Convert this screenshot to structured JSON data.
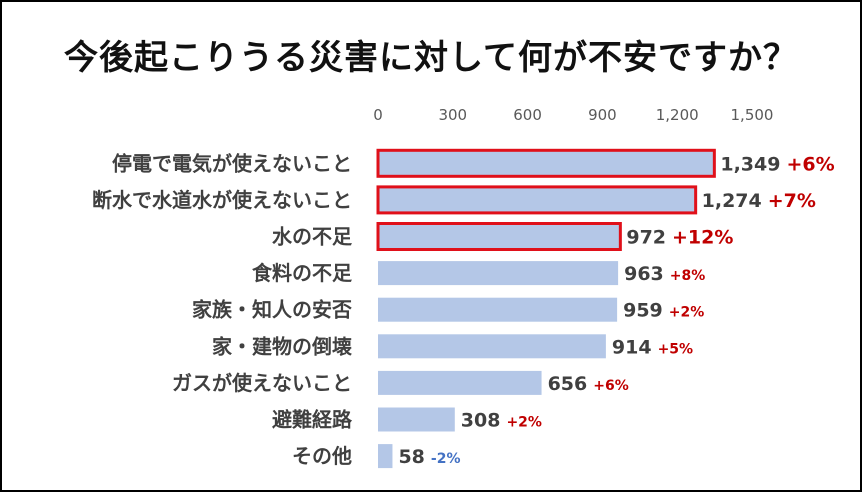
{
  "chart_data": {
    "type": "bar",
    "orientation": "horizontal",
    "title": "今後起こりうる災害に対して何が不安ですか？",
    "categories": [
      "停電で電気が使えないこと",
      "断水で水道水が使えないこと",
      "水の不足",
      "食料の不足",
      "家族・知人の安否",
      "家・建物の倒壊",
      "ガスが使えないこと",
      "避難経路",
      "その他"
    ],
    "values": [
      1349,
      1274,
      972,
      963,
      959,
      914,
      656,
      308,
      58
    ],
    "value_labels": [
      "1,349",
      "1,274",
      "972",
      "963",
      "959",
      "914",
      "656",
      "308",
      "58"
    ],
    "changes": [
      "+6%",
      "+7%",
      "+12%",
      "+8%",
      "+2%",
      "+5%",
      "+6%",
      "+2%",
      "-2%"
    ],
    "highlighted": [
      true,
      true,
      true,
      false,
      false,
      false,
      false,
      false,
      false
    ],
    "xlim": [
      0,
      1500
    ],
    "xticks": [
      0,
      300,
      600,
      900,
      1200,
      1500
    ],
    "xtick_labels": [
      "0",
      "300",
      "600",
      "900",
      "1,200",
      "1,500"
    ],
    "xlabel": "",
    "ylabel": "",
    "grid": false,
    "legend": "none",
    "colors": {
      "bar": "#b4c7e7",
      "highlight_border": "#e0101a",
      "change_positive": "#c00000",
      "change_negative": "#4472c4",
      "axis_text": "#595959",
      "label_text": "#404040"
    }
  }
}
